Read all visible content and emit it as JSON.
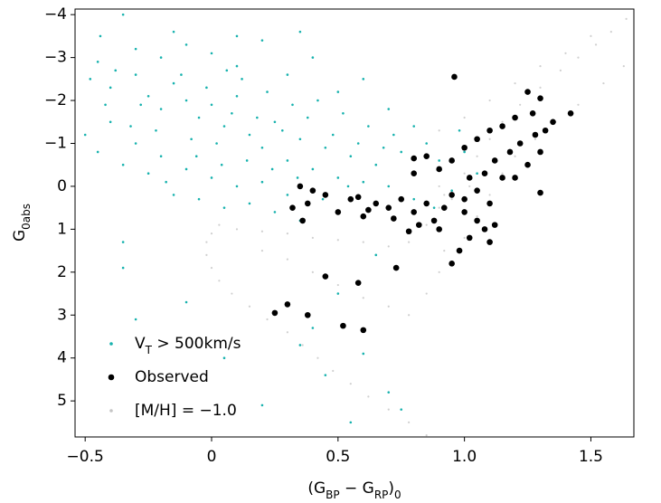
{
  "chart_data": {
    "type": "scatter",
    "xlabel": [
      "(G",
      "BP",
      " − G",
      "RP",
      ")",
      "0"
    ],
    "ylabel": [
      "G",
      "0abs"
    ],
    "xlim": [
      -0.54,
      1.67
    ],
    "ylim": [
      5.84,
      -4.13
    ],
    "xticks": [
      {
        "value": -0.5,
        "label": "−0.5"
      },
      0,
      0.5,
      {
        "value": 1.0,
        "label": "1.0"
      },
      1.5
    ],
    "yticks": [
      {
        "value": -4,
        "label": "−4"
      },
      {
        "value": -3,
        "label": "−3"
      },
      {
        "value": -2,
        "label": "−2"
      },
      {
        "value": -1,
        "label": "−1"
      },
      0,
      1,
      2,
      3,
      4,
      5
    ],
    "legend": "lower left",
    "series": [
      {
        "name": [
          "V",
          "T",
          " > 500km/s"
        ],
        "color": "#17b2ae",
        "x": [
          -0.35,
          -0.45,
          -0.4,
          -0.3,
          -0.25,
          -0.2,
          -0.15,
          -0.1,
          -0.05,
          0,
          0.05,
          0.1,
          0.15,
          0.2,
          0.25,
          0.3,
          0.35,
          0.4,
          0.45,
          0.5,
          0.55,
          0.6,
          0.65,
          0.7,
          0.75,
          0.8,
          -0.5,
          -0.45,
          -0.4,
          -0.35,
          -0.3,
          -0.25,
          -0.2,
          -0.15,
          -0.1,
          -0.05,
          0,
          0.05,
          0.1,
          0.15,
          0.2,
          0.25,
          0.3,
          0.35,
          -0.3,
          -0.2,
          -0.1,
          0,
          0.1,
          0.2,
          0.3,
          0.4,
          0.5,
          0.6,
          0.7,
          0.8,
          0.85,
          0.9,
          0.95,
          -0.28,
          -0.22,
          -0.12,
          -0.08,
          -0.02,
          0.02,
          0.08,
          0.12,
          0.18,
          0.22,
          0.28,
          0.32,
          0.38,
          0.42,
          0.48,
          0.52,
          0.58,
          0.62,
          0.68,
          0.72,
          -0.48,
          -0.42,
          -0.38,
          -0.32,
          0.06,
          0.14,
          0.24,
          0.34,
          0.44,
          0.54,
          -0.18,
          -0.06,
          0.04,
          -0.35,
          -0.35,
          -0.1,
          0.35,
          0.4,
          0.45,
          0.6,
          0.7,
          0.75,
          0.55,
          0.2,
          -0.3,
          0.05,
          0.65,
          0.5,
          1.0,
          1.05,
          0.98,
          0.88,
          -0.44,
          0.35,
          0.1,
          -0.15
        ],
        "values": [
          -4.0,
          -2.9,
          -2.3,
          -2.6,
          -2.1,
          -1.8,
          -2.4,
          -2.0,
          -1.6,
          -1.9,
          -1.4,
          -2.1,
          -1.2,
          -0.9,
          -1.5,
          -0.6,
          -1.1,
          -0.4,
          -0.9,
          -0.2,
          -0.7,
          -0.1,
          -0.5,
          0.0,
          -0.8,
          0.3,
          -1.2,
          -0.8,
          -1.5,
          -0.5,
          -1.0,
          -0.3,
          -0.7,
          0.2,
          -0.4,
          0.3,
          -0.2,
          0.5,
          0.0,
          0.4,
          -0.1,
          0.6,
          0.2,
          0.8,
          -3.2,
          -3.0,
          -3.3,
          -3.1,
          -2.8,
          -3.4,
          -2.6,
          -3.0,
          -2.2,
          -2.5,
          -1.8,
          -1.4,
          -1.0,
          -0.6,
          0.1,
          -1.9,
          -1.3,
          -2.6,
          -1.1,
          -2.3,
          -1.0,
          -1.7,
          -2.5,
          -1.6,
          -2.2,
          -1.3,
          -1.9,
          -1.6,
          -2.0,
          -1.2,
          -1.7,
          -1.0,
          -1.4,
          -0.9,
          -1.2,
          -2.5,
          -1.9,
          -2.7,
          -1.4,
          -2.7,
          -0.6,
          -0.4,
          -0.2,
          0.3,
          0.0,
          -0.1,
          -0.7,
          -0.5,
          1.3,
          1.9,
          2.7,
          3.7,
          3.3,
          4.4,
          3.9,
          4.8,
          5.2,
          5.5,
          5.1,
          3.1,
          4.0,
          1.6,
          2.5,
          -0.8,
          -0.3,
          -1.3,
          0.5,
          -3.5,
          -3.6,
          -3.5,
          -3.6
        ]
      },
      {
        "name": [
          "Observed"
        ],
        "color": "#000000",
        "x": [
          0.96,
          1.25,
          1.3,
          1.42,
          1.35,
          1.2,
          1.15,
          1.28,
          1.1,
          1.22,
          1.05,
          1.18,
          1.0,
          1.12,
          1.3,
          1.25,
          0.95,
          1.08,
          1.02,
          0.9,
          0.85,
          0.8,
          1.15,
          1.3,
          1.05,
          1.0,
          0.95,
          1.1,
          1.0,
          1.05,
          1.08,
          1.02,
          0.98,
          0.95,
          1.1,
          1.12,
          0.92,
          0.88,
          0.85,
          0.8,
          0.75,
          0.7,
          0.65,
          0.6,
          0.55,
          0.5,
          0.45,
          0.4,
          0.35,
          0.58,
          0.72,
          0.82,
          0.9,
          0.78,
          0.62,
          0.38,
          0.32,
          0.36,
          0.45,
          0.58,
          0.73,
          0.3,
          0.25,
          0.38,
          0.52,
          0.6,
          0.8,
          1.2,
          1.27,
          1.32
        ],
        "values": [
          -2.55,
          -2.2,
          -2.05,
          -1.7,
          -1.5,
          -1.6,
          -1.4,
          -1.2,
          -1.3,
          -1.0,
          -1.1,
          -0.8,
          -0.9,
          -0.6,
          -0.8,
          -0.5,
          -0.6,
          -0.3,
          -0.2,
          -0.4,
          -0.7,
          -0.3,
          -0.2,
          0.15,
          0.1,
          0.3,
          0.2,
          0.4,
          0.6,
          0.8,
          1.0,
          1.2,
          1.5,
          1.8,
          1.3,
          0.9,
          0.5,
          0.8,
          0.4,
          0.6,
          0.3,
          0.5,
          0.4,
          0.7,
          0.3,
          0.6,
          0.2,
          0.1,
          0.0,
          0.25,
          0.75,
          0.9,
          1.0,
          1.05,
          0.55,
          0.4,
          0.5,
          0.8,
          2.1,
          2.25,
          1.9,
          2.75,
          2.95,
          3.0,
          3.25,
          3.35,
          -0.65,
          -0.2,
          -1.7,
          -1.3
        ]
      },
      {
        "name": [
          "[M/H] = −1.0"
        ],
        "color": "#c4c4c4",
        "x": [
          0.85,
          0.78,
          0.7,
          0.62,
          0.55,
          0.48,
          0.42,
          0.36,
          0.3,
          0.22,
          0.15,
          0.08,
          0.03,
          0.0,
          -0.02,
          -0.02,
          0.0,
          0.03,
          0.1,
          0.2,
          0.3,
          0.4,
          0.5,
          0.6,
          0.7,
          0.78,
          0.2,
          0.3,
          0.4,
          0.5,
          0.6,
          0.7,
          0.78,
          0.85,
          0.9,
          0.92,
          0.85,
          0.9,
          0.95,
          1.0,
          1.05,
          1.1,
          1.15,
          1.22,
          1.3,
          1.38,
          1.45,
          1.52,
          1.58,
          1.64,
          1.0,
          1.05,
          1.1,
          1.15,
          1.2,
          1.28,
          1.36,
          1.45,
          1.55,
          1.63,
          0.9,
          1.0,
          1.1,
          1.2,
          1.3,
          1.4,
          1.5,
          0.95,
          0.92,
          0.9,
          1.02
        ],
        "values": [
          5.8,
          5.5,
          5.2,
          4.9,
          4.6,
          4.3,
          4.0,
          3.7,
          3.4,
          3.1,
          2.8,
          2.5,
          2.2,
          1.9,
          1.6,
          1.3,
          1.1,
          0.9,
          1.0,
          1.05,
          1.1,
          1.2,
          1.25,
          1.3,
          1.4,
          1.3,
          1.5,
          1.7,
          2.0,
          2.3,
          2.6,
          2.8,
          3.0,
          2.5,
          2.0,
          1.5,
          0.9,
          0.5,
          0.1,
          -0.3,
          -0.7,
          -1.1,
          -1.5,
          -1.9,
          -2.3,
          -2.7,
          -3.0,
          -3.3,
          -3.6,
          -3.9,
          1.2,
          0.7,
          0.2,
          -0.3,
          -0.7,
          -1.1,
          -1.5,
          -1.9,
          -2.4,
          -2.8,
          -1.3,
          -1.6,
          -2.0,
          -2.4,
          -2.8,
          -3.1,
          -3.5,
          0.3,
          0.2,
          0.0,
          0.0
        ]
      }
    ]
  }
}
